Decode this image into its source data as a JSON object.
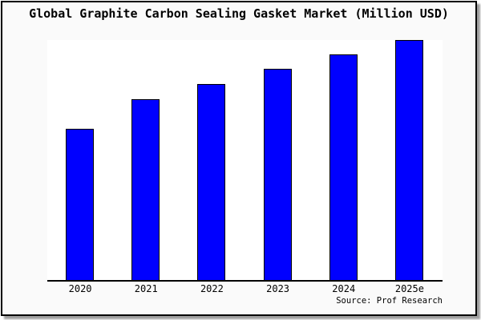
{
  "chart": {
    "title": "Global Graphite Carbon Sealing Gasket Market (Million USD)",
    "source": "Source: Prof Research",
    "colors": {
      "bar_fill": "#0000ff",
      "bar_border": "#000000",
      "axis": "#000000",
      "plot_background": "#ffffff",
      "frame_background": "#fafafa",
      "frame_border": "#000000"
    }
  },
  "chart_data": {
    "type": "bar",
    "title": "Global Graphite Carbon Sealing Gasket Market (Million USD)",
    "categories": [
      "2020",
      "2021",
      "2022",
      "2023",
      "2024",
      "2025e"
    ],
    "values": [
      62.7,
      75.0,
      81.3,
      87.7,
      93.7,
      99.7
    ],
    "value_note": "y-axis is unlabeled; values estimated as percent of plot height (2025e ~= full scale)",
    "xlabel": "",
    "ylabel": "",
    "ylim": [
      0,
      100
    ],
    "grid": false,
    "legend": false,
    "annotations": [
      "Source: Prof Research"
    ]
  }
}
